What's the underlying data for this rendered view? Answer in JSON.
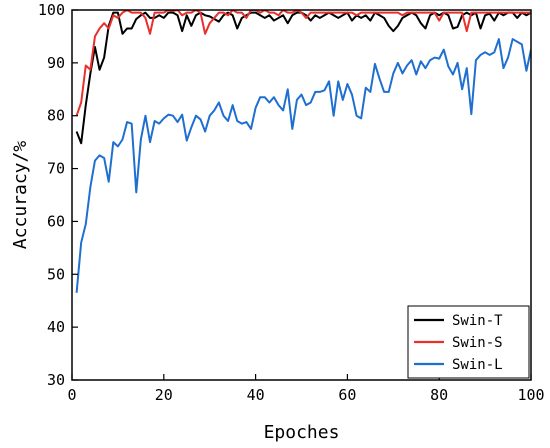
{
  "chart_data": {
    "type": "line",
    "xlabel": "Epoches",
    "ylabel": "Accuracy/%",
    "xlim": [
      0,
      100
    ],
    "ylim": [
      30,
      100
    ],
    "xticks": [
      0,
      20,
      40,
      60,
      80,
      100
    ],
    "yticks": [
      30,
      40,
      50,
      60,
      70,
      80,
      90,
      100
    ],
    "grid": false,
    "legend_position": "bottom-right",
    "series": [
      {
        "name": "Swin-T",
        "color": "#000000",
        "x": [
          1,
          2,
          3,
          4,
          5,
          6,
          7,
          8,
          9,
          10,
          11,
          12,
          13,
          14,
          15,
          16,
          17,
          18,
          19,
          20,
          21,
          22,
          23,
          24,
          25,
          26,
          27,
          28,
          29,
          30,
          31,
          32,
          33,
          34,
          35,
          36,
          37,
          38,
          39,
          40,
          41,
          42,
          43,
          44,
          45,
          46,
          47,
          48,
          49,
          50,
          51,
          52,
          53,
          54,
          55,
          56,
          57,
          58,
          59,
          60,
          61,
          62,
          63,
          64,
          65,
          66,
          67,
          68,
          69,
          70,
          71,
          72,
          73,
          74,
          75,
          76,
          77,
          78,
          79,
          80,
          81,
          82,
          83,
          84,
          85,
          86,
          87,
          88,
          89,
          90,
          91,
          92,
          93,
          94,
          95,
          96,
          97,
          98,
          99,
          100
        ],
        "values": [
          77,
          74.8,
          82,
          88,
          93,
          88.7,
          91,
          97,
          99.5,
          99.5,
          95.5,
          96.5,
          96.5,
          98.3,
          99,
          99.5,
          98.5,
          98.5,
          99,
          98.5,
          99.5,
          99.5,
          99,
          96,
          99,
          97,
          99,
          99.5,
          99,
          98.8,
          98.3,
          97.8,
          99,
          99.5,
          99,
          96.5,
          98.5,
          99,
          99.5,
          99.5,
          99,
          98.5,
          99,
          98,
          98.5,
          99,
          97.5,
          99,
          99.5,
          99.5,
          99,
          98,
          99,
          98.5,
          99,
          99.5,
          99,
          98.5,
          99,
          99.5,
          98,
          99,
          98.5,
          99,
          98,
          99.5,
          99,
          98.5,
          97,
          96,
          97,
          98.5,
          99,
          99.5,
          99,
          97.5,
          96.5,
          99,
          99.5,
          99,
          99.5,
          99,
          96.5,
          96.8,
          99,
          99.5,
          99,
          99.5,
          96.5,
          99,
          99.3,
          98,
          99.5,
          99,
          99.5,
          99.5,
          98.5,
          99.5,
          99,
          99.5
        ]
      },
      {
        "name": "Swin-S",
        "color": "#e8302d",
        "x": [
          1,
          2,
          3,
          4,
          5,
          6,
          7,
          8,
          9,
          10,
          11,
          12,
          13,
          14,
          15,
          16,
          17,
          18,
          19,
          20,
          21,
          22,
          23,
          24,
          25,
          26,
          27,
          28,
          29,
          30,
          31,
          32,
          33,
          34,
          35,
          36,
          37,
          38,
          39,
          40,
          41,
          42,
          43,
          44,
          45,
          46,
          47,
          48,
          49,
          50,
          51,
          52,
          53,
          54,
          55,
          56,
          57,
          58,
          59,
          60,
          61,
          62,
          63,
          64,
          65,
          66,
          67,
          68,
          69,
          70,
          71,
          72,
          73,
          74,
          75,
          76,
          77,
          78,
          79,
          80,
          81,
          82,
          83,
          84,
          85,
          86,
          87,
          88,
          89,
          90,
          91,
          92,
          93,
          94,
          95,
          96,
          97,
          98,
          99,
          100
        ],
        "values": [
          80,
          82.5,
          89.5,
          88.7,
          95,
          96.5,
          97.5,
          96.5,
          99,
          98.5,
          99.5,
          100,
          99.5,
          99.5,
          99.5,
          98.5,
          95.5,
          99.5,
          99.5,
          99.5,
          100,
          99.8,
          100,
          99,
          99.5,
          99.5,
          100,
          99.5,
          95.5,
          97.5,
          98.5,
          99.5,
          99.5,
          99,
          100,
          99.5,
          99.5,
          98.5,
          100,
          100,
          99.5,
          100,
          99.5,
          99.5,
          99,
          100,
          99.5,
          99.5,
          100,
          99.5,
          98.5,
          99.5,
          99.5,
          99.5,
          99.5,
          99.5,
          99.5,
          99.5,
          99.5,
          99.5,
          99.5,
          99,
          99.5,
          99.5,
          99.5,
          99.5,
          99.5,
          99.5,
          99.5,
          99.5,
          99.5,
          99,
          99.5,
          99.5,
          99.5,
          99.5,
          99.5,
          99.5,
          99.5,
          98,
          99.5,
          99.5,
          99.5,
          99.5,
          99.5,
          96,
          99.5,
          99.5,
          99.5,
          99.5,
          99.5,
          99.5,
          99.5,
          99.5,
          99.5,
          99.5,
          99.5,
          99.5,
          99.5,
          99.5
        ]
      },
      {
        "name": "Swin-L",
        "color": "#1f6fd1",
        "x": [
          1,
          2,
          3,
          4,
          5,
          6,
          7,
          8,
          9,
          10,
          11,
          12,
          13,
          14,
          15,
          16,
          17,
          18,
          19,
          20,
          21,
          22,
          23,
          24,
          25,
          26,
          27,
          28,
          29,
          30,
          31,
          32,
          33,
          34,
          35,
          36,
          37,
          38,
          39,
          40,
          41,
          42,
          43,
          44,
          45,
          46,
          47,
          48,
          49,
          50,
          51,
          52,
          53,
          54,
          55,
          56,
          57,
          58,
          59,
          60,
          61,
          62,
          63,
          64,
          65,
          66,
          67,
          68,
          69,
          70,
          71,
          72,
          73,
          74,
          75,
          76,
          77,
          78,
          79,
          80,
          81,
          82,
          83,
          84,
          85,
          86,
          87,
          88,
          89,
          90,
          91,
          92,
          93,
          94,
          95,
          96,
          97,
          98,
          99,
          100
        ],
        "values": [
          46.5,
          56,
          59.5,
          66.5,
          71.5,
          72.5,
          72,
          67.5,
          75,
          74.2,
          75.5,
          78.8,
          78.5,
          65.5,
          75.5,
          80,
          75,
          79,
          78.5,
          79.5,
          80.2,
          80,
          78.8,
          80.2,
          75.3,
          77.8,
          80,
          79.3,
          77,
          80,
          81,
          82.5,
          80,
          79,
          82,
          79,
          78.5,
          78.8,
          77.5,
          81.5,
          83.5,
          83.5,
          82.5,
          83.5,
          82,
          81,
          85,
          77.5,
          83,
          84,
          82,
          82.5,
          84.5,
          84.5,
          84.8,
          86.5,
          80,
          86.5,
          83,
          86,
          84,
          80,
          79.5,
          85.3,
          84.5,
          89.8,
          87,
          84.5,
          84.5,
          88,
          90,
          88,
          89.5,
          90.5,
          87.8,
          90.3,
          89,
          90.5,
          91,
          90.8,
          92.5,
          89.3,
          87.8,
          90,
          85,
          89,
          80.3,
          90.5,
          91.5,
          92,
          91.5,
          92,
          94.5,
          89,
          91,
          94.5,
          94,
          93.5,
          88.5,
          92.5
        ]
      }
    ]
  }
}
